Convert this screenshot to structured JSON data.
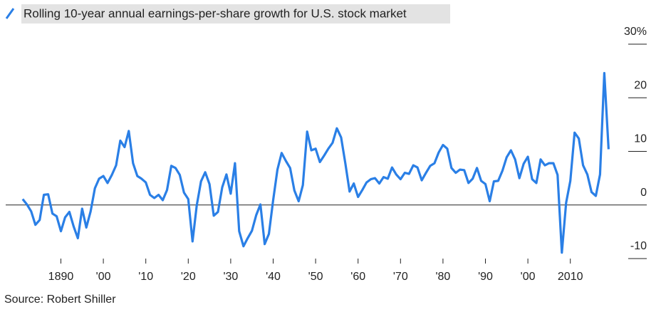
{
  "chart_data": {
    "type": "line",
    "source": "Source: Robert Shiller",
    "x": [
      1881,
      1882,
      1883,
      1884,
      1885,
      1886,
      1887,
      1888,
      1889,
      1890,
      1891,
      1892,
      1893,
      1894,
      1895,
      1896,
      1897,
      1898,
      1899,
      1900,
      1901,
      1902,
      1903,
      1904,
      1905,
      1906,
      1907,
      1908,
      1909,
      1910,
      1911,
      1912,
      1913,
      1914,
      1915,
      1916,
      1917,
      1918,
      1919,
      1920,
      1921,
      1922,
      1923,
      1924,
      1925,
      1926,
      1927,
      1928,
      1929,
      1930,
      1931,
      1932,
      1933,
      1934,
      1935,
      1936,
      1937,
      1938,
      1939,
      1940,
      1941,
      1942,
      1943,
      1944,
      1945,
      1946,
      1947,
      1948,
      1949,
      1950,
      1951,
      1952,
      1953,
      1954,
      1955,
      1956,
      1957,
      1958,
      1959,
      1960,
      1961,
      1962,
      1963,
      1964,
      1965,
      1966,
      1967,
      1968,
      1969,
      1970,
      1971,
      1972,
      1973,
      1974,
      1975,
      1976,
      1977,
      1978,
      1979,
      1980,
      1981,
      1982,
      1983,
      1984,
      1985,
      1986,
      1987,
      1988,
      1989,
      1990,
      1991,
      1992,
      1993,
      1994,
      1995,
      1996,
      1997,
      1998,
      1999,
      2000,
      2001,
      2002,
      2003,
      2004,
      2005,
      2006,
      2007,
      2008,
      2009,
      2010,
      2011,
      2012,
      2013,
      2014,
      2015,
      2016,
      2017,
      2018,
      2019
    ],
    "series": [
      {
        "name": "Rolling 10-year annual earnings-per-share growth for U.S. stock market",
        "color": "#2a7fe6",
        "values": [
          1.1,
          0.1,
          -1.2,
          -3.7,
          -2.8,
          1.9,
          2.0,
          -1.6,
          -2.1,
          -4.9,
          -2.3,
          -1.3,
          -4.0,
          -6.2,
          -0.7,
          -4.2,
          -1.2,
          3.1,
          4.9,
          5.4,
          4.1,
          5.6,
          7.4,
          12.0,
          10.8,
          13.8,
          7.8,
          5.4,
          4.9,
          4.2,
          1.9,
          1.3,
          1.9,
          0.9,
          2.8,
          7.3,
          6.9,
          5.6,
          2.3,
          1.1,
          -6.8,
          -0.1,
          4.4,
          6.1,
          3.9,
          -2.0,
          -1.3,
          3.3,
          5.7,
          2.1,
          7.8,
          -4.9,
          -7.7,
          -6.2,
          -4.8,
          -1.9,
          0.1,
          -7.3,
          -5.4,
          0.9,
          6.6,
          9.7,
          8.2,
          6.9,
          2.7,
          0.7,
          3.7,
          13.7,
          10.2,
          10.5,
          8.0,
          9.2,
          10.5,
          11.6,
          14.3,
          12.6,
          7.8,
          2.5,
          4.0,
          1.5,
          2.8,
          4.2,
          4.8,
          5.0,
          4.0,
          5.2,
          4.9,
          7.0,
          5.7,
          4.8,
          6.0,
          5.8,
          7.4,
          7.0,
          4.6,
          6.0,
          7.3,
          7.8,
          9.8,
          11.2,
          10.5,
          6.9,
          6.0,
          6.6,
          6.5,
          4.1,
          4.9,
          6.9,
          4.5,
          3.9,
          0.7,
          4.4,
          4.5,
          6.4,
          8.9,
          10.2,
          8.5,
          5.0,
          7.7,
          9.0,
          4.8,
          4.1,
          8.5,
          7.4,
          7.8,
          7.8,
          5.6,
          -8.9,
          0.4,
          4.5,
          13.5,
          12.4,
          7.4,
          5.7,
          2.4,
          1.7,
          5.7,
          24.6,
          10.4
        ]
      }
    ],
    "xlim": [
      1877,
      2028
    ],
    "xticks": [
      {
        "value": 1890,
        "label": "1890"
      },
      {
        "value": 1900,
        "label": "'00"
      },
      {
        "value": 1910,
        "label": "'10"
      },
      {
        "value": 1920,
        "label": "'20"
      },
      {
        "value": 1930,
        "label": "'30"
      },
      {
        "value": 1940,
        "label": "'40"
      },
      {
        "value": 1950,
        "label": "'50"
      },
      {
        "value": 1960,
        "label": "'60"
      },
      {
        "value": 1970,
        "label": "'70"
      },
      {
        "value": 1980,
        "label": "'80"
      },
      {
        "value": 1990,
        "label": "'90"
      },
      {
        "value": 2000,
        "label": "'00"
      },
      {
        "value": 2010,
        "label": "2010"
      }
    ],
    "ylim": [
      -10,
      30
    ],
    "yticks": [
      {
        "value": 30,
        "label": "30%"
      },
      20,
      10,
      0,
      -10
    ]
  }
}
